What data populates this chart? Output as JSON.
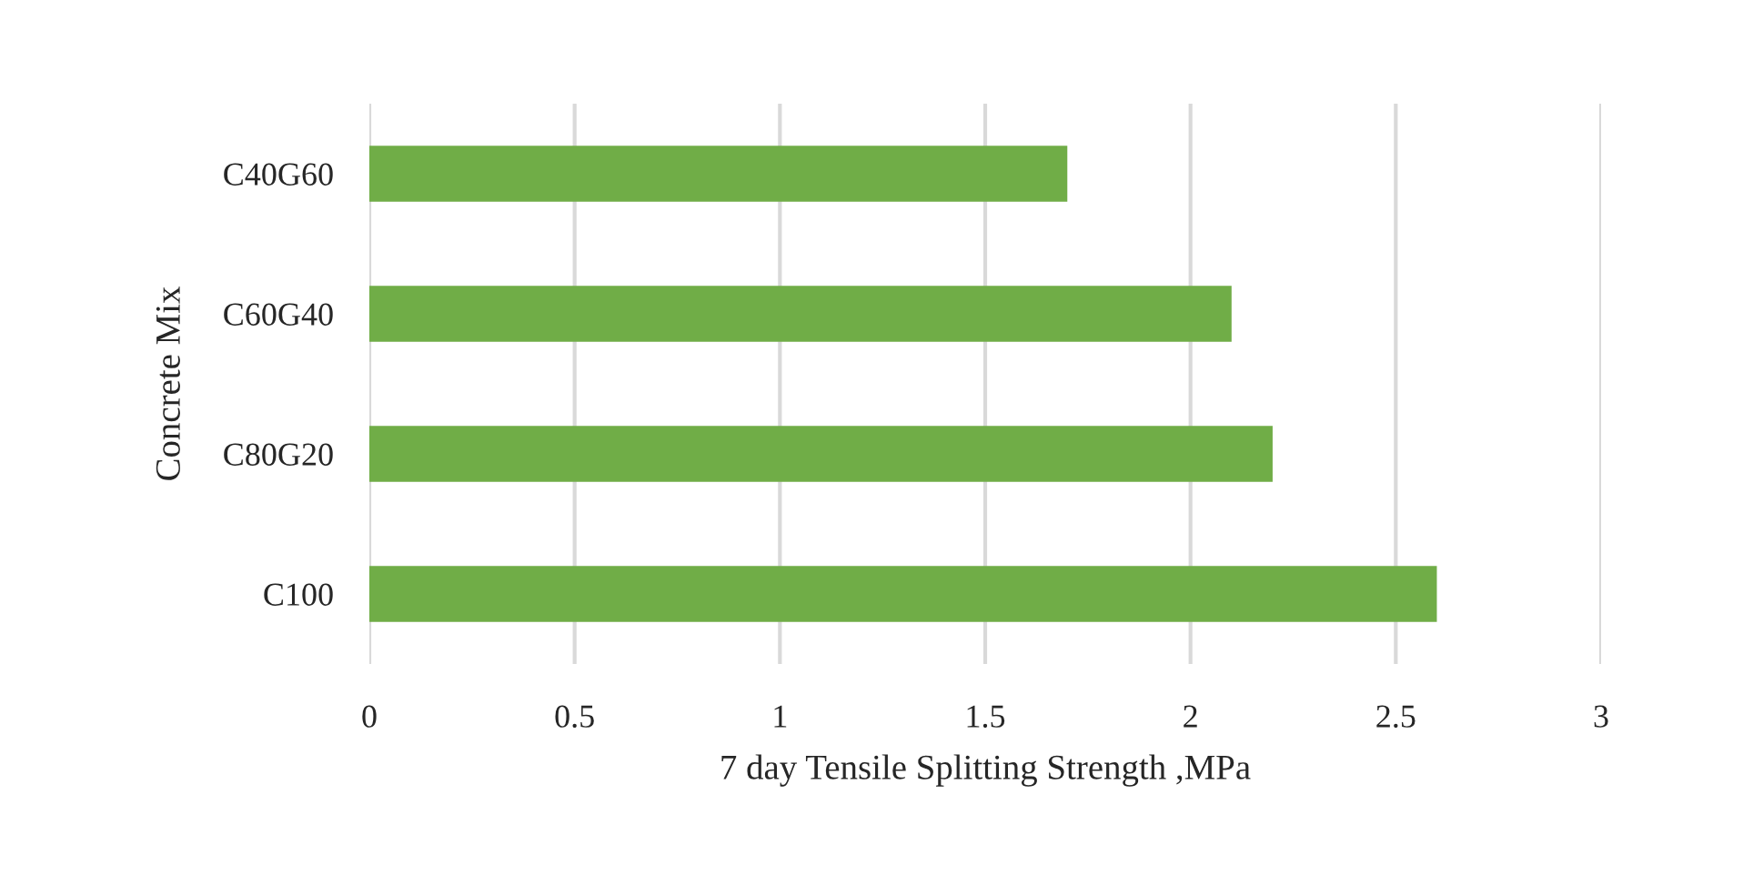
{
  "chart_data": {
    "type": "bar",
    "orientation": "horizontal",
    "categories": [
      "C40G60",
      "C60G40",
      "C80G20",
      "C100"
    ],
    "values": [
      1.7,
      2.1,
      2.2,
      2.6
    ],
    "color": "#70ad47",
    "xlabel": "7 day Tensile Splitting Strength ,MPa",
    "ylabel": "Concrete Mix",
    "xlim": [
      0,
      3
    ],
    "xticks": [
      0,
      0.5,
      1,
      1.5,
      2,
      2.5,
      3
    ],
    "grid": "x"
  }
}
